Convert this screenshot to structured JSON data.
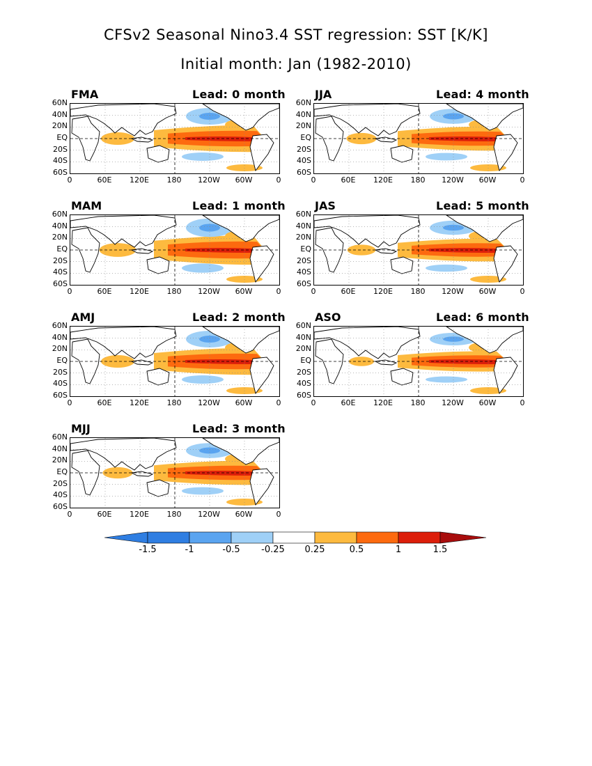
{
  "title_line1": "CFSv2 Seasonal Nino3.4 SST regression: SST [K/K]",
  "title_line2": "Initial month: Jan (1982-2010)",
  "axes": {
    "lat_labels": [
      "60N",
      "40N",
      "20N",
      "EQ",
      "20S",
      "40S",
      "60S"
    ],
    "lon_labels": [
      "0",
      "60E",
      "120E",
      "180",
      "120W",
      "60W",
      "0"
    ]
  },
  "panels": [
    {
      "season": "FMA",
      "lead": "Lead: 0 month",
      "intensity": 1.0
    },
    {
      "season": "MAM",
      "lead": "Lead: 1 month",
      "intensity": 1.1
    },
    {
      "season": "AMJ",
      "lead": "Lead: 2 month",
      "intensity": 1.0
    },
    {
      "season": "MJJ",
      "lead": "Lead: 3 month",
      "intensity": 0.9
    },
    {
      "season": "JJA",
      "lead": "Lead: 4 month",
      "intensity": 0.9
    },
    {
      "season": "JAS",
      "lead": "Lead: 5 month",
      "intensity": 0.85
    },
    {
      "season": "ASO",
      "lead": "Lead: 6 month",
      "intensity": 0.75
    }
  ],
  "colorbar": {
    "labels": [
      "-1.5",
      "-1",
      "-0.5",
      "-0.25",
      "0.25",
      "0.5",
      "1",
      "1.5"
    ],
    "colors": [
      "#2f7ee2",
      "#2f7ee2",
      "#5aa4f0",
      "#9fd0f7",
      "#ffffff",
      "#fdba3f",
      "#fd6a0f",
      "#dc1e0a",
      "#a80d0d"
    ]
  }
}
